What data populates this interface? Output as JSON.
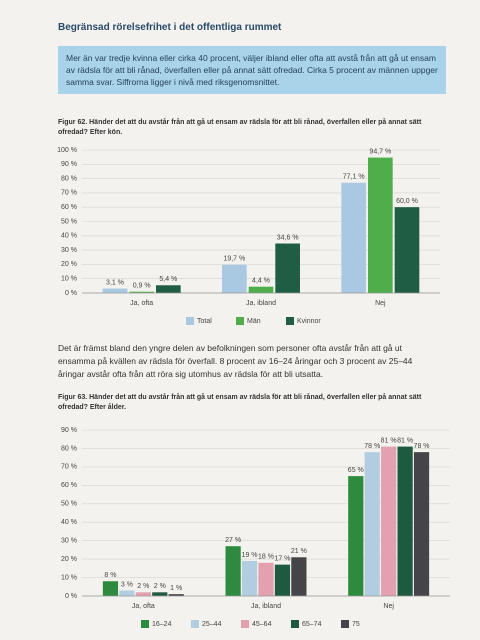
{
  "header": {
    "title": "Begränsad rörelsefrihet i det offentliga rummet"
  },
  "highlight": {
    "text": "Mer än var tredje kvinna eller cirka 40 procent, väljer ibland eller ofta att avstå från att gå ut ensam av rädsla för att bli rånad, överfallen eller på annat sätt ofredad. Cirka 5 procent av männen uppger samma svar. Siffrorna ligger i nivå med riksgenomsnittet."
  },
  "body": {
    "paragraph": "Det är främst bland den yngre delen av befolkningen som personer ofta avstår från att gå ut ensamma på kvällen av rädsla för överfall. 8 procent av 16–24 åringar och 3 procent av 25–44 åringar avstår ofta från att röra sig utomhus av rädsla för att bli utsatta."
  },
  "chart_data": [
    {
      "type": "bar",
      "title": "Figur 62. Händer det att du avstår från att gå ut ensam av rädsla för att bli rånad, överfallen eller på annat sätt ofredad? Efter kön.",
      "categories": [
        "Ja, ofta",
        "Ja, ibland",
        "Nej"
      ],
      "series": [
        {
          "name": "Total",
          "color": "#a9c9e2",
          "values": [
            3.1,
            19.7,
            77.1
          ],
          "value_labels": [
            "3,1 %",
            "19,7 %",
            "77,1 %"
          ]
        },
        {
          "name": "Män",
          "color": "#4fae4a",
          "values": [
            0.9,
            4.4,
            94.7
          ],
          "value_labels": [
            "0,9 %",
            "4,4 %",
            "94,7 %"
          ]
        },
        {
          "name": "Kvinnor",
          "color": "#1f5d45",
          "values": [
            5.4,
            34.6,
            60.0
          ],
          "value_labels": [
            "5,4 %",
            "34,6 %",
            "60,0 %"
          ]
        }
      ],
      "ylim": [
        0,
        100
      ],
      "yticks": [
        {
          "value": 0,
          "label": "0 %"
        },
        {
          "value": 10,
          "label": "10 %"
        },
        {
          "value": 20,
          "label": "20 %"
        },
        {
          "value": 30,
          "label": "30 %"
        },
        {
          "value": 40,
          "label": "40 %"
        },
        {
          "value": 50,
          "label": "50 %"
        },
        {
          "value": 60,
          "label": "60 %"
        },
        {
          "value": 70,
          "label": "70 %"
        },
        {
          "value": 80,
          "label": "80 %"
        },
        {
          "value": 90,
          "label": "90 %"
        },
        {
          "value": 100,
          "label": "100 %"
        }
      ],
      "grid": true,
      "legend": "bottom"
    },
    {
      "type": "bar",
      "title": "Figur 63. Händer det att du avstår från att gå ut ensam av rädsla för att bli rånad, överfallen eller på annat sätt ofredad? Efter ålder.",
      "categories": [
        "Ja, ofta",
        "Ja, ibland",
        "Nej"
      ],
      "series": [
        {
          "name": "16–24",
          "color": "#2e8b3e",
          "values": [
            8,
            27,
            65
          ],
          "value_labels": [
            "8 %",
            "27 %",
            "65 %"
          ]
        },
        {
          "name": "25–44",
          "color": "#b3cde0",
          "values": [
            3,
            19,
            78
          ],
          "value_labels": [
            "3 %",
            "19 %",
            "78 %"
          ]
        },
        {
          "name": "45–64",
          "color": "#e3a0ae",
          "values": [
            2,
            18,
            81
          ],
          "value_labels": [
            "2 %",
            "18 %",
            "81 %"
          ]
        },
        {
          "name": "65–74",
          "color": "#1d5a40",
          "values": [
            2,
            17,
            81
          ],
          "value_labels": [
            "2 %",
            "17 %",
            "81 %"
          ]
        },
        {
          "name": "75",
          "color": "#454549",
          "values": [
            1,
            21,
            78
          ],
          "value_labels": [
            "1 %",
            "21 %",
            "78 %"
          ]
        }
      ],
      "ylim": [
        0,
        90
      ],
      "yticks": [
        {
          "value": 0,
          "label": "0 %"
        },
        {
          "value": 10,
          "label": "10 %"
        },
        {
          "value": 20,
          "label": "20 %"
        },
        {
          "value": 30,
          "label": "30 %"
        },
        {
          "value": 40,
          "label": "40 %"
        },
        {
          "value": 50,
          "label": "50 %"
        },
        {
          "value": 60,
          "label": "60 %"
        },
        {
          "value": 70,
          "label": "70 %"
        },
        {
          "value": 80,
          "label": "80 %"
        },
        {
          "value": 90,
          "label": "90 %"
        }
      ],
      "grid": true,
      "legend": "bottom"
    }
  ]
}
